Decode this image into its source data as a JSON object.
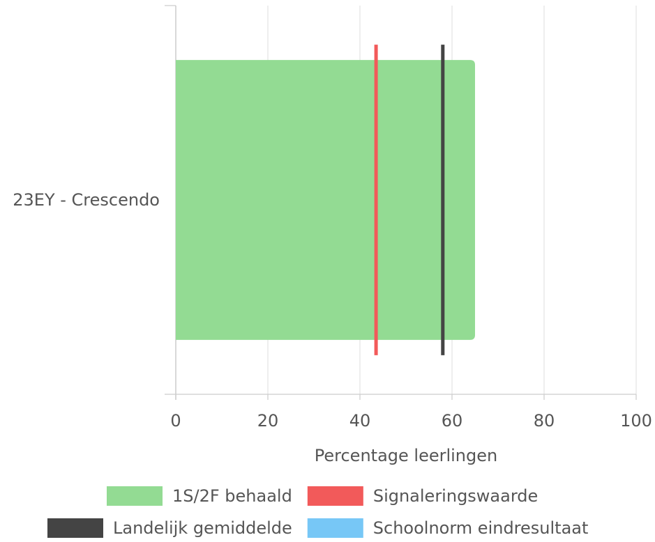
{
  "chart_data": {
    "type": "bar",
    "orientation": "horizontal",
    "categories": [
      "23EY - Crescendo"
    ],
    "series": [
      {
        "name": "1S/2F behaald",
        "values": [
          65
        ],
        "color": "#93db93"
      }
    ],
    "reference_lines": [
      {
        "name": "Signaleringswaarde",
        "value": 43.5,
        "color": "#f25a5a"
      },
      {
        "name": "Landelijk gemiddelde",
        "value": 58,
        "color": "#444444"
      },
      {
        "name": "Schoolnorm eindresultaat",
        "value": null,
        "color": "#77c7f6"
      }
    ],
    "xlabel": "Percentage leerlingen",
    "ylabel": "",
    "xlim": [
      0,
      100
    ],
    "xticks": [
      0,
      20,
      40,
      60,
      80,
      100
    ],
    "grid": true,
    "legend_position": "bottom"
  }
}
